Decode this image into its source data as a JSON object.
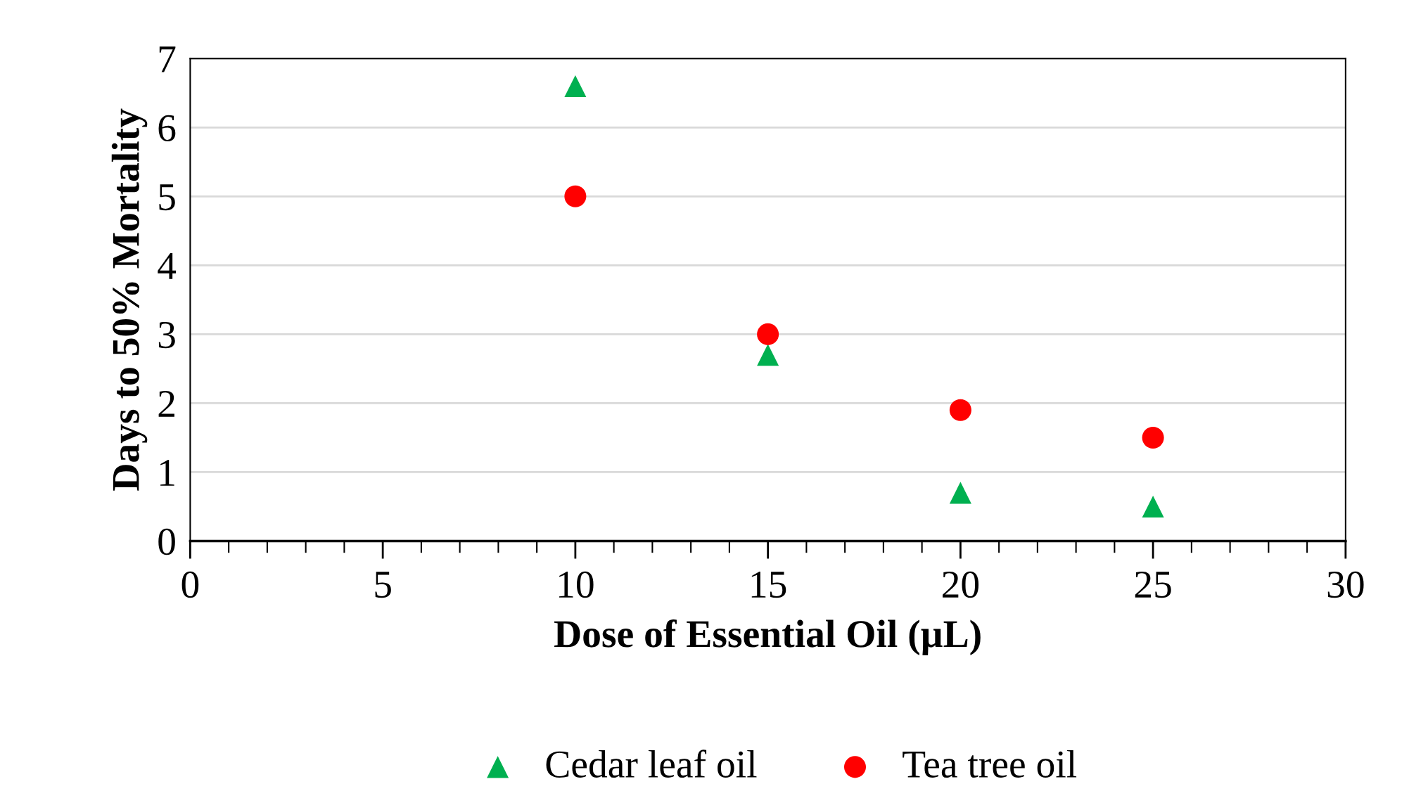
{
  "chart_data": {
    "type": "scatter",
    "xlabel": "Dose of Essential Oil (µL)",
    "ylabel": "Days to 50% Mortality",
    "x": [
      10,
      15,
      20,
      25
    ],
    "series": [
      {
        "name": "Cedar leaf oil",
        "color": "#00b050",
        "marker": "triangle",
        "values": [
          6.6,
          2.7,
          0.7,
          0.5
        ]
      },
      {
        "name": "Tea tree oil",
        "color": "#ff0000",
        "marker": "circle",
        "values": [
          5.0,
          3.0,
          1.9,
          1.5
        ]
      }
    ],
    "xlim": [
      0,
      30
    ],
    "xticks": [
      0,
      5,
      10,
      15,
      20,
      25,
      30
    ],
    "ylim": [
      0,
      7
    ],
    "yticks": [
      0,
      1,
      2,
      3,
      4,
      5,
      6,
      7
    ],
    "grid": "y",
    "legend": "bottom"
  }
}
